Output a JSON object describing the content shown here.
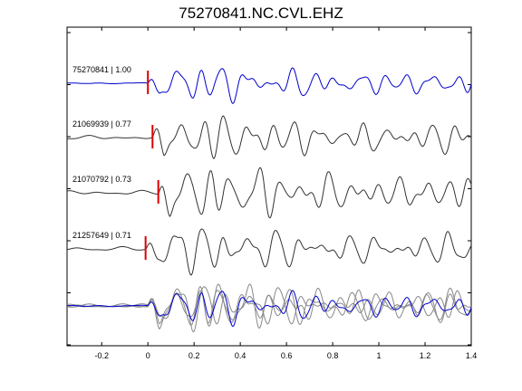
{
  "chart_data": {
    "type": "line",
    "title": "75270841.NC.CVL.EHZ",
    "xlabel": "",
    "ylabel": "",
    "xlim": [
      -0.35,
      1.4
    ],
    "x_ticks": [
      -0.2,
      0,
      0.2,
      0.4,
      0.6,
      0.8,
      1,
      1.2,
      1.4
    ],
    "x_tick_labels": [
      "-0.2",
      "0",
      "0.2",
      "0.4",
      "0.6",
      "0.8",
      "1",
      "1.2",
      "1.4"
    ],
    "grid": false,
    "colors": {
      "reference": "#0000cc",
      "match": "#333333",
      "overlay": "#888888",
      "pick": "#dd0000"
    },
    "traces": [
      {
        "label": "75270841 | 1.00",
        "pick_time": 0.0,
        "color": "#0000cc",
        "seed": 11
      },
      {
        "label": "21069939 | 0.77",
        "pick_time": 0.02,
        "color": "#333333",
        "seed": 23
      },
      {
        "label": "21070792 | 0.73",
        "pick_time": 0.045,
        "color": "#333333",
        "seed": 37
      },
      {
        "label": "21257649 | 0.71",
        "pick_time": -0.01,
        "color": "#333333",
        "seed": 51
      }
    ]
  }
}
